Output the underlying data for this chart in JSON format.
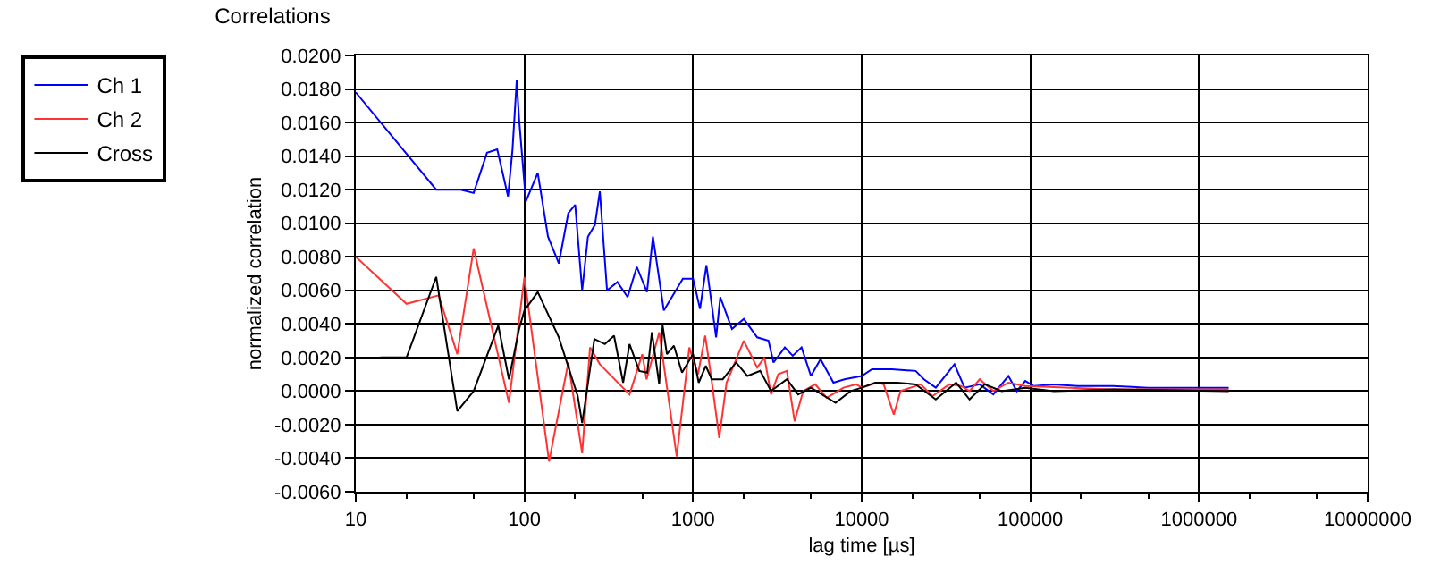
{
  "chart_data": {
    "type": "line",
    "title": "Correlations",
    "xlabel": "lag time [µs]",
    "ylabel": "normalized correlation",
    "log": "x",
    "grid": true,
    "legend": "top left",
    "marker": "none",
    "line_style": "solid",
    "xlim": [
      10,
      10000000
    ],
    "xticks": [
      10,
      100,
      1000,
      10000,
      100000,
      1000000,
      10000000
    ],
    "ylim": [
      -0.006,
      0.02
    ],
    "yticks": [
      {
        "value": -0.006,
        "label": "-0.0060"
      },
      {
        "value": -0.004,
        "label": "-0.0040"
      },
      {
        "value": -0.002,
        "label": "-0.0020"
      },
      {
        "value": 0,
        "label": "0.0000"
      },
      {
        "value": 0.002,
        "label": "0.0020"
      },
      {
        "value": 0.004,
        "label": "0.0040"
      },
      {
        "value": 0.006,
        "label": "0.0060"
      },
      {
        "value": 0.008,
        "label": "0.0080"
      },
      {
        "value": 0.01,
        "label": "0.0100"
      },
      {
        "value": 0.012,
        "label": "0.0120"
      },
      {
        "value": 0.014,
        "label": "0.0140"
      },
      {
        "value": 0.016,
        "label": "0.0160"
      },
      {
        "value": 0.018,
        "label": "0.0180"
      },
      {
        "value": 0.02,
        "label": "0.0200"
      }
    ],
    "series": [
      {
        "name": "Ch 1",
        "color": "#0000ff",
        "x": [
          10,
          30,
          42,
          50,
          60,
          69,
          80,
          85,
          90,
          93,
          102,
          120,
          138,
          160,
          182,
          200,
          220,
          238,
          262,
          280,
          309,
          356,
          409,
          464,
          533,
          578,
          671,
          870,
          1000,
          1100,
          1200,
          1370,
          1450,
          1700,
          2000,
          2400,
          2800,
          3000,
          3500,
          3900,
          4400,
          5000,
          5700,
          6800,
          7900,
          10000,
          11500,
          15100,
          20900,
          23400,
          27500,
          35500,
          40700,
          50100,
          60300,
          74100,
          83200,
          93300,
          105000,
          138000,
          191000,
          245000,
          309000,
          500000,
          800000,
          1500000
        ],
        "values": [
          0.0178,
          0.012,
          0.012,
          0.0118,
          0.0142,
          0.0144,
          0.0116,
          0.0144,
          0.0185,
          0.0162,
          0.0113,
          0.013,
          0.0092,
          0.0076,
          0.0106,
          0.0111,
          0.006,
          0.0092,
          0.0099,
          0.0119,
          0.006,
          0.0065,
          0.0056,
          0.0074,
          0.0059,
          0.0092,
          0.0048,
          0.0067,
          0.0067,
          0.0049,
          0.0075,
          0.0032,
          0.0056,
          0.0037,
          0.0043,
          0.0032,
          0.003,
          0.0017,
          0.0026,
          0.0021,
          0.0026,
          0.0009,
          0.0019,
          0.0005,
          0.0007,
          0.0009,
          0.0013,
          0.0013,
          0.0012,
          0.0007,
          0.0002,
          0.0016,
          0.0002,
          0.0004,
          -0.0002,
          0.0009,
          0,
          0.0006,
          0.0003,
          0.0004,
          0.0003,
          0.0003,
          0.0003,
          0.0002,
          0.0002,
          0.0002
        ]
      },
      {
        "name": "Ch 2",
        "color": "#ff3333",
        "x": [
          10,
          20,
          31,
          40,
          50,
          81,
          100,
          140,
          182,
          220,
          245,
          280,
          420,
          500,
          530,
          630,
          800,
          950,
          1070,
          1180,
          1270,
          1430,
          1580,
          2000,
          2400,
          2650,
          2900,
          3200,
          3600,
          4000,
          4500,
          5300,
          6200,
          7800,
          9300,
          10000,
          12300,
          13500,
          15500,
          17000,
          22400,
          26300,
          33100,
          38900,
          43600,
          50100,
          60300,
          74100,
          93300,
          300000,
          1500000
        ],
        "values": [
          0.008,
          0.0052,
          0.0057,
          0.0022,
          0.0085,
          -0.0007,
          0.0068,
          -0.0042,
          0.0017,
          -0.0037,
          0.0026,
          0.0016,
          -0.0002,
          0.0022,
          0.0007,
          0.0035,
          -0.0039,
          0.0026,
          0.001,
          0.0033,
          0.0011,
          -0.0028,
          0.0005,
          0.003,
          0.0014,
          0.002,
          -0.0002,
          0.001,
          0.0012,
          -0.0018,
          0,
          0.0004,
          -0.0004,
          0.0002,
          0.0004,
          0.0002,
          0.0005,
          0.0004,
          -0.0014,
          0,
          0.0004,
          -0.0003,
          0.0004,
          0.0003,
          0,
          0.0007,
          0,
          0.0005,
          0.0003,
          0.0001,
          0.0001
        ]
      },
      {
        "name": "Cross",
        "color": "#000000",
        "x": [
          14,
          20,
          30,
          40,
          50,
          70,
          81,
          93,
          100,
          120,
          160,
          207,
          220,
          260,
          300,
          340,
          385,
          420,
          480,
          535,
          570,
          630,
          660,
          700,
          770,
          860,
          1000,
          1080,
          1190,
          1290,
          1500,
          1800,
          2100,
          2500,
          2900,
          3600,
          4200,
          5000,
          7000,
          8600,
          10000,
          12000,
          16200,
          20900,
          27500,
          36300,
          43600,
          53700,
          67600,
          93300,
          138000,
          309000,
          1500000
        ],
        "values": [
          0.002,
          0.002,
          0.0068,
          -0.0012,
          0,
          0.0039,
          0.0007,
          0.0037,
          0.0048,
          0.0059,
          0.0032,
          -0.0003,
          -0.0019,
          0.0031,
          0.0028,
          0.0033,
          0.0005,
          0.0028,
          0.0012,
          0.0011,
          0.0035,
          0.0004,
          0.0039,
          0.0022,
          0.0027,
          0.0011,
          0.0022,
          0.0005,
          0.0015,
          0.0007,
          0.0007,
          0.0017,
          0.0009,
          0.0012,
          0,
          0.0007,
          -0.0002,
          0.0002,
          -0.0007,
          0,
          0.0002,
          0.0005,
          0.0005,
          0.0004,
          -0.0005,
          0.0005,
          -0.0005,
          0.0004,
          0,
          0.0002,
          0,
          0.0001,
          0
        ]
      }
    ]
  }
}
